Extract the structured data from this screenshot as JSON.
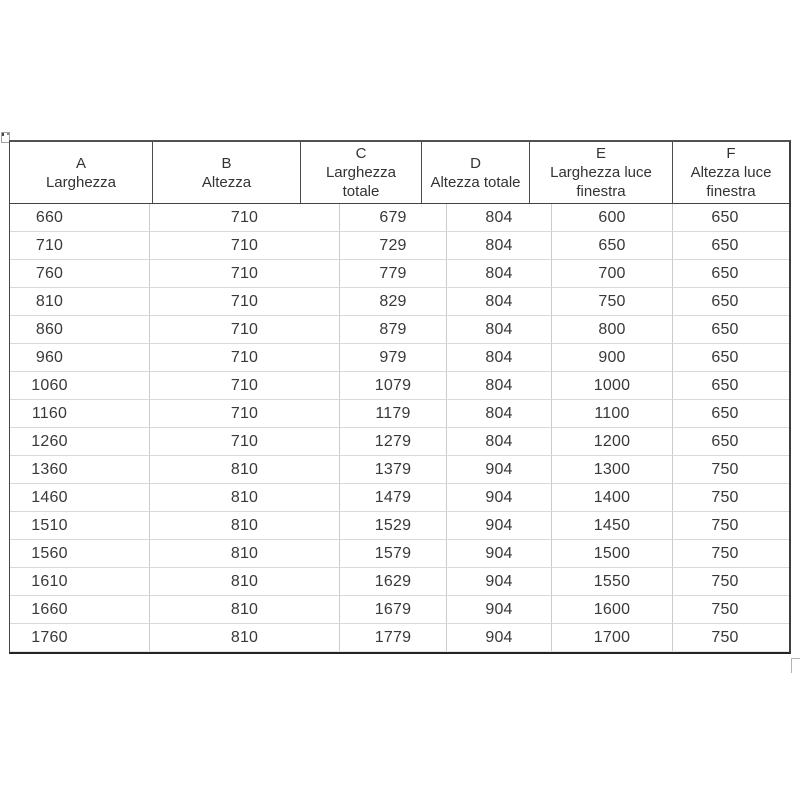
{
  "window": {
    "background": "#ffffff"
  },
  "colors": {
    "frame_border": "#454547",
    "header_divider": "#4b4b4d",
    "grid_vertical": "#c9cbce",
    "grid_horizontal": "#d8d9db",
    "text": "#39393b"
  },
  "icons": {
    "top_left_artifact": "object-anchor-mark",
    "bottom_right_artifact": "cell-corner-mark"
  },
  "table": {
    "columns": [
      {
        "letter": "A",
        "label": "Larghezza",
        "header_text": "A\nLarghezza"
      },
      {
        "letter": "B",
        "label": "Altezza",
        "header_text": "B\nAltezza"
      },
      {
        "letter": "C",
        "label": "Larghezza totale",
        "header_text": "C\nLarghezza\ntotale"
      },
      {
        "letter": "D",
        "label": "Altezza totale",
        "header_text": "D\nAltezza totale"
      },
      {
        "letter": "E",
        "label": "Larghezza luce finestra",
        "header_text": "E\nLarghezza luce\nfinestra"
      },
      {
        "letter": "F",
        "label": "Altezza luce finestra",
        "header_text": "F\nAltezza luce\nfinestra"
      }
    ],
    "rows": [
      [
        "660",
        "710",
        "679",
        "804",
        "600",
        "650"
      ],
      [
        "710",
        "710",
        "729",
        "804",
        "650",
        "650"
      ],
      [
        "760",
        "710",
        "779",
        "804",
        "700",
        "650"
      ],
      [
        "810",
        "710",
        "829",
        "804",
        "750",
        "650"
      ],
      [
        "860",
        "710",
        "879",
        "804",
        "800",
        "650"
      ],
      [
        "960",
        "710",
        "979",
        "804",
        "900",
        "650"
      ],
      [
        "1060",
        "710",
        "1079",
        "804",
        "1000",
        "650"
      ],
      [
        "1160",
        "710",
        "1179",
        "804",
        "1100",
        "650"
      ],
      [
        "1260",
        "710",
        "1279",
        "804",
        "1200",
        "650"
      ],
      [
        "1360",
        "810",
        "1379",
        "904",
        "1300",
        "750"
      ],
      [
        "1460",
        "810",
        "1479",
        "904",
        "1400",
        "750"
      ],
      [
        "1510",
        "810",
        "1529",
        "904",
        "1450",
        "750"
      ],
      [
        "1560",
        "810",
        "1579",
        "904",
        "1500",
        "750"
      ],
      [
        "1610",
        "810",
        "1629",
        "904",
        "1550",
        "750"
      ],
      [
        "1660",
        "810",
        "1679",
        "904",
        "1600",
        "750"
      ],
      [
        "1760",
        "810",
        "1779",
        "904",
        "1700",
        "750"
      ]
    ]
  }
}
